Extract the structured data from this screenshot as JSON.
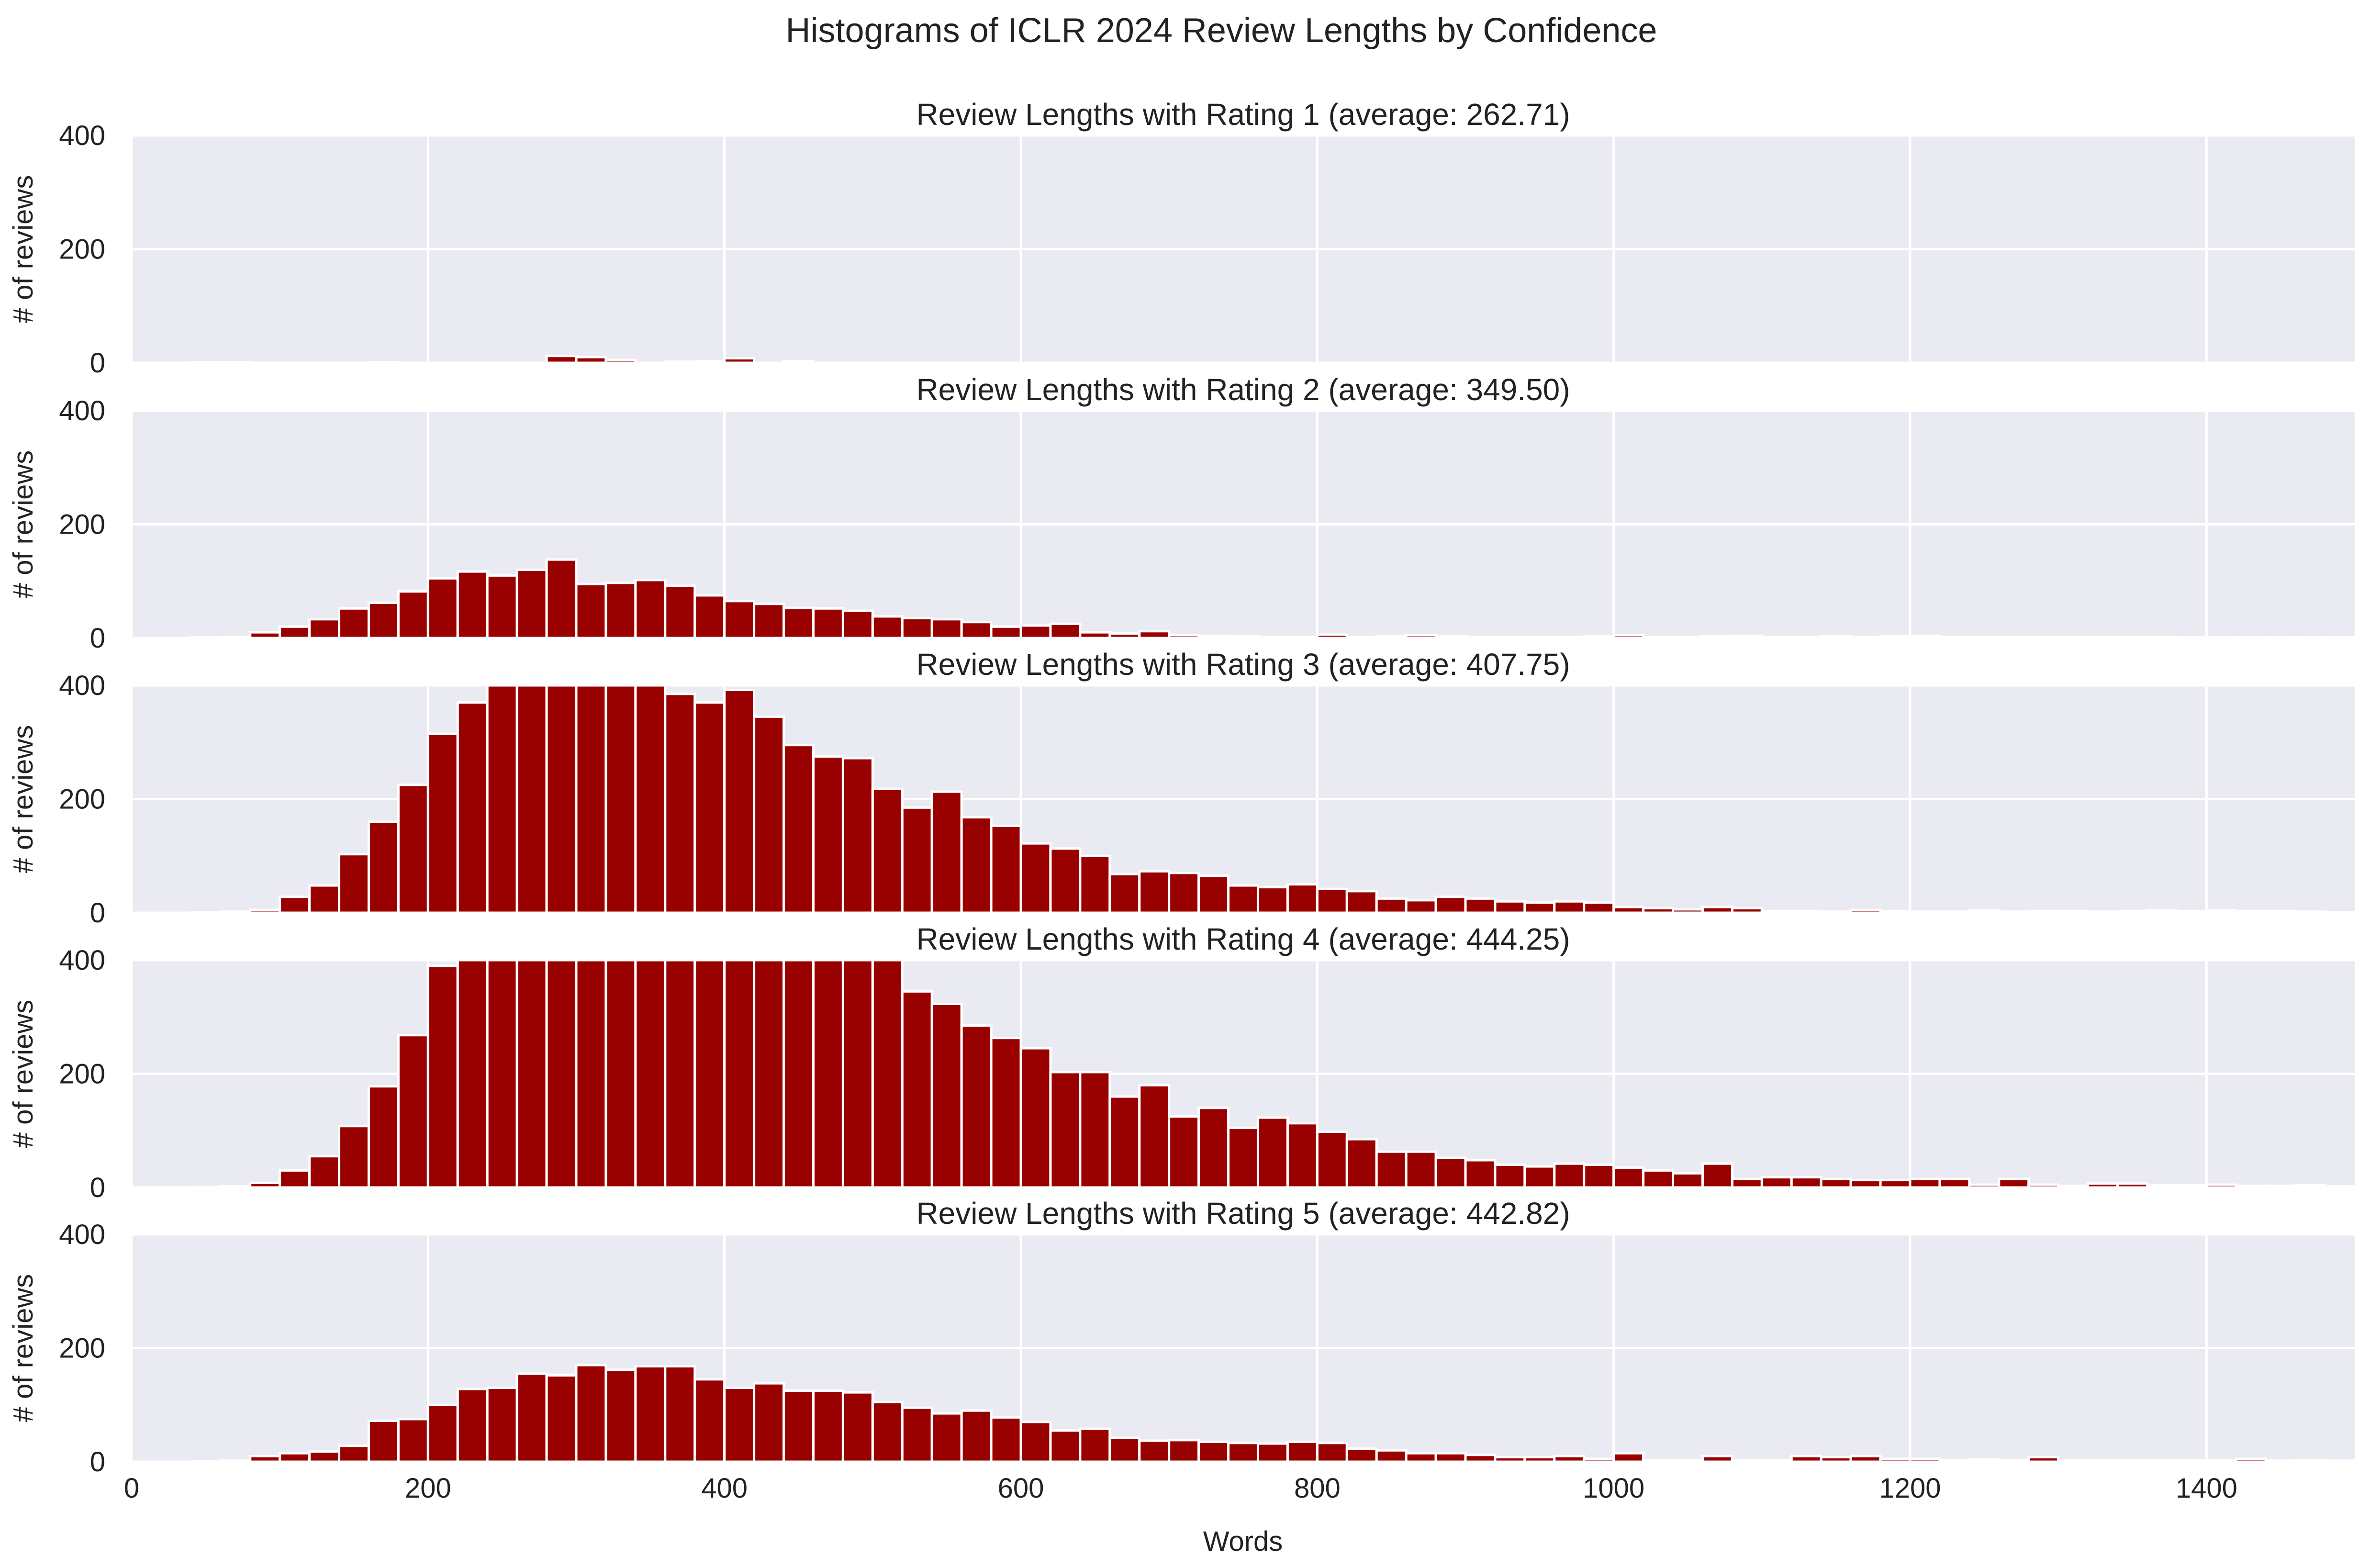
{
  "colors": {
    "bar": "#990000",
    "background": "#eaeaf2",
    "grid": "#ffffff",
    "text": "#222222"
  },
  "chart_data": {
    "type": "bar",
    "title": "Histograms of ICLR 2024 Review Lengths by Confidence",
    "xlabel": "Words",
    "ylabel": "# of reviews",
    "xlim": [
      0,
      1500
    ],
    "ylim": [
      0,
      400
    ],
    "xticks": [
      "0",
      "200",
      "400",
      "600",
      "800",
      "1000",
      "1200",
      "1400"
    ],
    "yticks": [
      "0",
      "200",
      "400"
    ],
    "grid": true,
    "bin_width": 20,
    "bin_start": 0,
    "panels": [
      {
        "title": "Review Lengths with Rating 1 (average: 262.71)",
        "values": [
          0,
          0,
          1,
          1,
          0,
          0,
          0,
          0,
          1,
          0,
          0,
          0,
          0,
          0,
          12,
          10,
          5,
          0,
          2,
          3,
          8,
          0,
          3,
          0,
          0,
          0,
          0,
          0,
          0,
          0,
          0,
          0,
          0,
          0,
          0,
          0,
          0,
          0,
          0,
          0,
          0,
          0,
          0,
          0,
          0,
          0,
          0,
          0,
          0,
          0,
          0,
          0,
          0,
          0,
          0,
          0,
          0,
          0,
          0,
          0,
          0,
          0,
          0,
          0,
          0,
          0,
          0,
          0,
          0,
          0,
          0,
          0,
          0,
          0,
          0
        ]
      },
      {
        "title": "Review Lengths with Rating 2 (average: 349.50)",
        "values": [
          0,
          0,
          1,
          2,
          10,
          20,
          33,
          52,
          62,
          82,
          105,
          117,
          110,
          120,
          138,
          95,
          97,
          102,
          92,
          75,
          65,
          60,
          53,
          52,
          48,
          38,
          35,
          33,
          28,
          20,
          22,
          25,
          10,
          8,
          12,
          5,
          4,
          3,
          2,
          2,
          6,
          2,
          3,
          5,
          3,
          2,
          2,
          2,
          2,
          3,
          5,
          2,
          2,
          3,
          4,
          2,
          2,
          3,
          2,
          3,
          4,
          2,
          2,
          2,
          2,
          2,
          2,
          2,
          2,
          1,
          1,
          1,
          1,
          1,
          1
        ]
      },
      {
        "title": "Review Lengths with Rating 3 (average: 407.75)",
        "values": [
          0,
          0,
          1,
          2,
          5,
          28,
          48,
          103,
          160,
          225,
          315,
          370,
          400,
          400,
          400,
          400,
          400,
          400,
          385,
          370,
          392,
          345,
          295,
          275,
          272,
          218,
          185,
          213,
          168,
          153,
          122,
          113,
          100,
          68,
          73,
          70,
          65,
          48,
          45,
          50,
          42,
          38,
          25,
          22,
          28,
          25,
          20,
          18,
          20,
          18,
          10,
          8,
          6,
          10,
          8,
          3,
          3,
          2,
          5,
          3,
          2,
          2,
          4,
          2,
          3,
          3,
          2,
          3,
          4,
          3,
          4,
          3,
          3,
          2,
          1
        ]
      },
      {
        "title": "Review Lengths with Rating 4 (average: 444.25)",
        "values": [
          0,
          0,
          1,
          2,
          8,
          30,
          55,
          108,
          178,
          268,
          390,
          400,
          400,
          400,
          400,
          400,
          400,
          400,
          400,
          400,
          400,
          400,
          400,
          400,
          400,
          400,
          345,
          323,
          285,
          263,
          245,
          203,
          203,
          160,
          180,
          125,
          140,
          105,
          123,
          113,
          98,
          85,
          63,
          63,
          52,
          48,
          40,
          37,
          42,
          40,
          35,
          30,
          25,
          42,
          15,
          18,
          18,
          15,
          13,
          13,
          15,
          15,
          5,
          15,
          5,
          3,
          7,
          7,
          4,
          4,
          5,
          3,
          3,
          4,
          2
        ]
      },
      {
        "title": "Review Lengths with Rating 5 (average: 442.82)",
        "values": [
          0,
          0,
          1,
          2,
          10,
          15,
          18,
          28,
          72,
          75,
          100,
          128,
          130,
          155,
          152,
          170,
          162,
          168,
          168,
          145,
          130,
          138,
          125,
          125,
          122,
          105,
          95,
          85,
          90,
          78,
          70,
          55,
          58,
          42,
          37,
          38,
          35,
          33,
          32,
          35,
          33,
          23,
          20,
          15,
          15,
          12,
          8,
          8,
          10,
          5,
          15,
          3,
          3,
          10,
          3,
          3,
          10,
          8,
          10,
          5,
          5,
          3,
          4,
          3,
          8,
          3,
          3,
          3,
          3,
          3,
          3,
          5,
          2,
          3,
          2
        ]
      }
    ]
  }
}
